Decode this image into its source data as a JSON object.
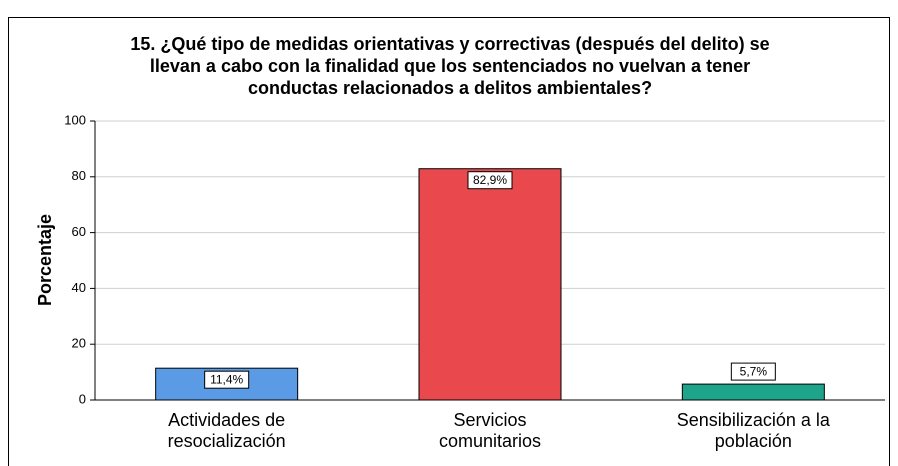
{
  "chart_data": {
    "type": "bar",
    "title": [
      "15. ¿Qué tipo de medidas orientativas y correctivas (después del delito) se",
      "llevan a cabo con la finalidad que los sentenciados no vuelvan a tener",
      "conductas relacionados a delitos ambientales?"
    ],
    "y_label": "Porcentaje",
    "categories": [
      "Actividades de\nresocialización",
      "Servicios\ncomunitarios",
      "Sensibilización a la\npoblación"
    ],
    "values": [
      11.4,
      82.9,
      5.7
    ],
    "value_labels": [
      "11,4%",
      "82,9%",
      "5,7%"
    ],
    "colors": [
      "#5b9be6",
      "#e9494d",
      "#1fa48c"
    ],
    "ylim": [
      0,
      100
    ],
    "yticks": [
      0,
      20,
      40,
      60,
      80,
      100
    ],
    "grid": true
  }
}
